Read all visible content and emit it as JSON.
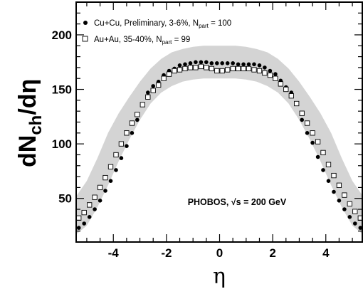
{
  "chart_data": {
    "type": "scatter",
    "title": "",
    "xlabel": "η",
    "ylabel": {
      "main": "dN",
      "sub": "ch",
      "tail": "/dη"
    },
    "xlim": [
      -5.4,
      5.4
    ],
    "ylim": [
      10,
      230
    ],
    "x_ticks": [
      -4,
      -2,
      0,
      2,
      4
    ],
    "y_ticks": [
      50,
      100,
      150,
      200
    ],
    "x_tick_labels": [
      "-4",
      "-2",
      "0",
      "2",
      "4"
    ],
    "y_tick_labels": [
      "50",
      "100",
      "150",
      "200"
    ],
    "legend_position": "top-left",
    "annotation": {
      "text": "PHOBOS, √s = 200 GeV",
      "x": -1.2,
      "y": 44
    },
    "band": {
      "color": "#d4d4d4",
      "upper": [
        [
          -5.4,
          52
        ],
        [
          -5,
          66
        ],
        [
          -4.6,
          87
        ],
        [
          -4.2,
          110
        ],
        [
          -3.8,
          128
        ],
        [
          -3.4,
          143
        ],
        [
          -3,
          157
        ],
        [
          -2.6,
          169
        ],
        [
          -2.2,
          178
        ],
        [
          -1.8,
          184
        ],
        [
          -1.4,
          187
        ],
        [
          -1,
          189
        ],
        [
          -0.6,
          190
        ],
        [
          -0.2,
          190
        ],
        [
          0.2,
          190
        ],
        [
          0.6,
          190
        ],
        [
          1,
          189
        ],
        [
          1.4,
          187
        ],
        [
          1.8,
          184
        ],
        [
          2.2,
          178
        ],
        [
          2.6,
          169
        ],
        [
          3,
          157
        ],
        [
          3.4,
          143
        ],
        [
          3.8,
          128
        ],
        [
          4.2,
          110
        ],
        [
          4.6,
          87
        ],
        [
          5,
          66
        ],
        [
          5.4,
          52
        ]
      ],
      "lower": [
        [
          -5.4,
          17
        ],
        [
          -5,
          25
        ],
        [
          -4.6,
          42
        ],
        [
          -4.2,
          62
        ],
        [
          -3.8,
          84
        ],
        [
          -3.4,
          104
        ],
        [
          -3,
          122
        ],
        [
          -2.6,
          137
        ],
        [
          -2.2,
          147
        ],
        [
          -1.8,
          153
        ],
        [
          -1.4,
          157
        ],
        [
          -1,
          159
        ],
        [
          -0.6,
          160
        ],
        [
          -0.2,
          160
        ],
        [
          0.2,
          160
        ],
        [
          0.6,
          160
        ],
        [
          1,
          159
        ],
        [
          1.4,
          157
        ],
        [
          1.8,
          153
        ],
        [
          2.2,
          147
        ],
        [
          2.6,
          137
        ],
        [
          3,
          122
        ],
        [
          3.4,
          104
        ],
        [
          3.8,
          84
        ],
        [
          4.2,
          62
        ],
        [
          4.6,
          42
        ],
        [
          5,
          25
        ],
        [
          5.4,
          17
        ]
      ]
    },
    "series": [
      {
        "name": "Cu+Cu, Preliminary, 3-6%, N",
        "name_sub": "part",
        "name_tail": " = 100",
        "marker": "filled-circle",
        "color": "#000000",
        "x": [
          -5.3,
          -5.1,
          -4.9,
          -4.7,
          -4.5,
          -4.3,
          -4.1,
          -3.9,
          -3.7,
          -3.5,
          -3.3,
          -3.1,
          -2.9,
          -2.7,
          -2.5,
          -2.3,
          -2.1,
          -1.9,
          -1.7,
          -1.5,
          -1.3,
          -1.1,
          -0.9,
          -0.7,
          -0.5,
          -0.3,
          -0.1,
          0.1,
          0.3,
          0.5,
          0.7,
          0.9,
          1.1,
          1.3,
          1.5,
          1.7,
          1.9,
          2.1,
          2.3,
          2.5,
          2.7,
          2.9,
          3.1,
          3.3,
          3.5,
          3.7,
          3.9,
          4.1,
          4.3,
          4.5,
          4.7,
          4.9,
          5.1,
          5.3
        ],
        "y": [
          23,
          27,
          33,
          40,
          48,
          57,
          66,
          76,
          87,
          98,
          110,
          122,
          136,
          147,
          153,
          157,
          163,
          167,
          169,
          172,
          173,
          174,
          175,
          175,
          175,
          174,
          174,
          174,
          174,
          174,
          173,
          173,
          173,
          173,
          172,
          170,
          167,
          164,
          158,
          152,
          147,
          137,
          122,
          110,
          101,
          88,
          76,
          66,
          56,
          48,
          40,
          33,
          27,
          23
        ]
      },
      {
        "name": "Au+Au, 35-40%, N",
        "name_sub": "part",
        "name_tail": " = 99",
        "marker": "open-square",
        "color": "#000000",
        "x": [
          -5.3,
          -5.1,
          -4.9,
          -4.7,
          -4.5,
          -4.3,
          -4.1,
          -3.9,
          -3.7,
          -3.5,
          -3.3,
          -3.1,
          -2.9,
          -2.7,
          -2.5,
          -2.3,
          -2.1,
          -1.9,
          -1.7,
          -1.5,
          -1.3,
          -1.1,
          -0.9,
          -0.7,
          -0.5,
          -0.3,
          -0.1,
          0.1,
          0.3,
          0.5,
          0.7,
          0.9,
          1.1,
          1.3,
          1.5,
          1.7,
          1.9,
          2.1,
          2.3,
          2.5,
          2.7,
          2.9,
          3.1,
          3.3,
          3.5,
          3.7,
          3.9,
          4.1,
          4.3,
          4.5,
          4.7,
          4.9,
          5.1,
          5.3
        ],
        "y": [
          32,
          37,
          44,
          51,
          60,
          69,
          79,
          90,
          100,
          110,
          119,
          127,
          136,
          143,
          149,
          154,
          160,
          164,
          167,
          168,
          169,
          170,
          170,
          171,
          170,
          169,
          167,
          167,
          168,
          169,
          169,
          169,
          169,
          168,
          167,
          165,
          163,
          160,
          155,
          150,
          144,
          137,
          128,
          119,
          110,
          102,
          92,
          81,
          71,
          62,
          53,
          45,
          38,
          32
        ]
      }
    ]
  }
}
